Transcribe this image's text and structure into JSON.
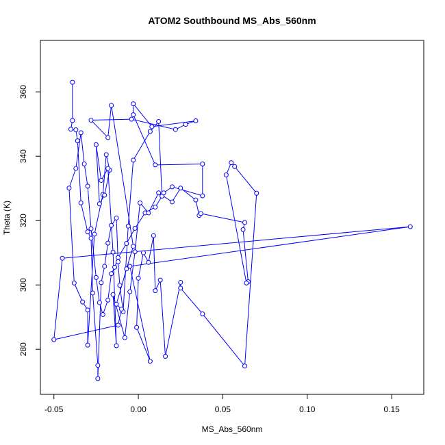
{
  "chart_data": {
    "type": "scatter",
    "title": "ATOM2 Southbound MS_Abs_560nm",
    "xlabel": "MS_Abs_560nm",
    "ylabel": "Theta (K)",
    "xlim": [
      -0.058,
      0.169
    ],
    "ylim": [
      266,
      376
    ],
    "x_ticks": [
      -0.05,
      0.0,
      0.05,
      0.1,
      0.15
    ],
    "x_tick_labels": [
      "-0.05",
      "0.00",
      "0.05",
      "0.10",
      "0.15"
    ],
    "y_ticks": [
      280,
      300,
      320,
      340,
      360
    ],
    "y_tick_labels": [
      "280",
      "300",
      "320",
      "340",
      "360"
    ],
    "grid": false,
    "connected": true,
    "series_color": "#0000ff",
    "points": [
      [
        -0.039,
        363
      ],
      [
        -0.039,
        351.1
      ],
      [
        -0.04,
        348.4
      ],
      [
        -0.037,
        348.2
      ],
      [
        -0.036,
        344.8
      ],
      [
        -0.034,
        325.5
      ],
      [
        -0.03,
        316.5
      ],
      [
        -0.028,
        314.5
      ],
      [
        -0.027,
        297.5
      ],
      [
        -0.024,
        275
      ],
      [
        -0.024,
        270.9
      ],
      [
        -0.022,
        300.7
      ],
      [
        -0.02,
        305.8
      ],
      [
        -0.018,
        313
      ],
      [
        -0.016,
        318.5
      ],
      [
        -0.013,
        320.8
      ],
      [
        -0.012,
        307.2
      ],
      [
        -0.011,
        299.9
      ],
      [
        -0.009,
        291.7
      ],
      [
        -0.006,
        318.3
      ],
      [
        -0.003,
        338.8
      ],
      [
        0.007,
        347.7
      ],
      [
        0.012,
        350.8
      ],
      [
        0.014,
        327.6
      ],
      [
        0.01,
        324.2
      ],
      [
        0.004,
        322.4
      ],
      [
        -0.002,
        317.6
      ],
      [
        -0.007,
        312.9
      ],
      [
        -0.012,
        308.5
      ],
      [
        -0.014,
        305.5
      ],
      [
        -0.016,
        303.5
      ],
      [
        -0.018,
        295.3
      ],
      [
        -0.021,
        290.8
      ],
      [
        -0.023,
        294.5
      ],
      [
        -0.025,
        302.3
      ],
      [
        -0.028,
        317.5
      ],
      [
        -0.03,
        330.7
      ],
      [
        -0.032,
        337.6
      ],
      [
        -0.034,
        347.3
      ],
      [
        -0.037,
        336.2
      ],
      [
        -0.041,
        330.1
      ],
      [
        -0.038,
        300.6
      ],
      [
        -0.033,
        294.7
      ],
      [
        -0.03,
        292.2
      ],
      [
        -0.03,
        281.3
      ],
      [
        -0.026,
        315.8
      ],
      [
        -0.021,
        328.1
      ],
      [
        -0.019,
        340.5
      ],
      [
        -0.017,
        335.7
      ],
      [
        -0.02,
        327.9
      ],
      [
        -0.023,
        325.2
      ],
      [
        -0.025,
        343.6
      ],
      [
        -0.022,
        332.5
      ],
      [
        -0.018,
        336.2
      ],
      [
        -0.015,
        310.2
      ],
      [
        -0.013,
        281.1
      ],
      [
        -0.015,
        297
      ],
      [
        -0.008,
        283.6
      ],
      [
        -0.005,
        297.9
      ],
      [
        -0.002,
        310.3
      ],
      [
        0.001,
        325.5
      ],
      [
        0.006,
        322.4
      ],
      [
        0.012,
        328.6
      ],
      [
        0.02,
        325.8
      ],
      [
        0.025,
        330.1
      ],
      [
        0.034,
        326.4
      ],
      [
        0.036,
        321.6
      ],
      [
        0.037,
        322.2
      ],
      [
        0.063,
        319.4
      ],
      [
        0.062,
        317.2
      ],
      [
        0.065,
        301
      ],
      [
        0.064,
        300.6
      ],
      [
        0.052,
        334.2
      ],
      [
        0.055,
        338
      ],
      [
        0.057,
        336.8
      ],
      [
        0.07,
        328.5
      ],
      [
        0.063,
        274.8
      ],
      [
        0.038,
        291
      ],
      [
        0.025,
        299
      ],
      [
        0.025,
        300.8
      ],
      [
        0.016,
        277.8
      ],
      [
        0.013,
        301.5
      ],
      [
        0.01,
        298.2
      ],
      [
        0.009,
        315.3
      ],
      [
        0.006,
        307
      ],
      [
        0.003,
        310
      ],
      [
        0.0,
        302.1
      ],
      [
        -0.001,
        286.8
      ],
      [
        0.007,
        276.3
      ],
      [
        -0.005,
        305.8
      ],
      [
        0.161,
        318.1
      ],
      [
        -0.045,
        308.3
      ],
      [
        -0.05,
        283
      ],
      [
        -0.012,
        287.5
      ],
      [
        -0.01,
        292.5
      ],
      [
        -0.013,
        294
      ],
      [
        -0.007,
        305
      ],
      [
        -0.003,
        312
      ],
      [
        -0.016,
        355.8
      ],
      [
        -0.018,
        345.8
      ],
      [
        -0.028,
        351.2
      ],
      [
        -0.004,
        351.5
      ],
      [
        0.022,
        348.3
      ],
      [
        0.028,
        349.9
      ],
      [
        0.034,
        351
      ],
      [
        0.008,
        349.2
      ],
      [
        -0.003,
        356.3
      ],
      [
        -0.003,
        352.9
      ],
      [
        0.01,
        337.3
      ],
      [
        0.038,
        337.6
      ],
      [
        0.038,
        327.7
      ],
      [
        0.02,
        330.5
      ],
      [
        0.015,
        328.6
      ]
    ]
  }
}
